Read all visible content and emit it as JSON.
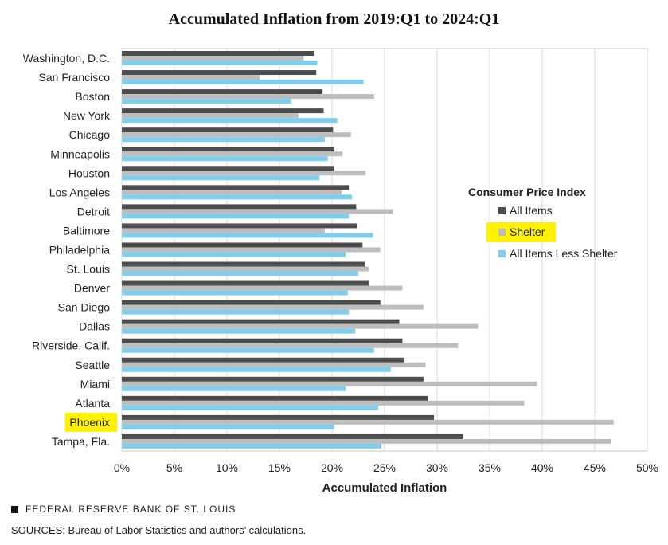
{
  "chart_data": {
    "type": "bar",
    "orientation": "horizontal",
    "title": "Accumulated Inflation from 2019:Q1 to 2024:Q1",
    "xlabel": "Accumulated  Inflation",
    "ylabel": "",
    "xlim": [
      0,
      50
    ],
    "x_ticks": [
      "0%",
      "5%",
      "10%",
      "15%",
      "20%",
      "25%",
      "30%",
      "35%",
      "40%",
      "45%",
      "50%"
    ],
    "grid": "vertical",
    "legend_title": "Consumer Price Index",
    "legend_position": "right",
    "highlighted_category": "Phoenix",
    "highlighted_series": "Shelter",
    "highlight_color": "#FFF200",
    "categories": [
      "Washington, D.C.",
      "San Francisco",
      "Boston",
      "New York",
      "Chicago",
      "Minneapolis",
      "Houston",
      "Los Angeles",
      "Detroit",
      "Baltimore",
      "Philadelphia",
      "St. Louis",
      "Denver",
      "San Diego",
      "Dallas",
      "Riverside, Calif.",
      "Seattle",
      "Miami",
      "Atlanta",
      "Phoenix",
      "Tampa, Fla."
    ],
    "series": [
      {
        "name": "All Items",
        "color": "#4D4D4D",
        "values": [
          18.3,
          18.5,
          19.1,
          19.2,
          20.1,
          20.2,
          20.2,
          21.6,
          22.3,
          22.4,
          22.9,
          23.1,
          23.5,
          24.6,
          26.4,
          26.7,
          26.9,
          28.7,
          29.1,
          29.7,
          32.5
        ]
      },
      {
        "name": "Shelter",
        "color": "#BDBDBD",
        "values": [
          17.3,
          13.1,
          24.0,
          16.8,
          21.8,
          21.0,
          23.2,
          20.9,
          25.8,
          19.3,
          24.6,
          23.5,
          26.7,
          28.7,
          33.9,
          32.0,
          28.9,
          39.5,
          38.3,
          46.8,
          46.6
        ]
      },
      {
        "name": "All Items Less Shelter",
        "color": "#7FCEEE",
        "values": [
          18.6,
          23.0,
          16.1,
          20.5,
          19.3,
          19.6,
          18.8,
          21.9,
          21.6,
          23.9,
          21.3,
          22.5,
          21.5,
          21.6,
          22.2,
          24.0,
          25.6,
          21.3,
          24.4,
          20.2,
          24.7
        ]
      }
    ]
  },
  "footer": {
    "brand": "FEDERAL RESERVE BANK OF ST. LOUIS",
    "sources": "SOURCES: Bureau of Labor Statistics and authors’ calculations."
  }
}
